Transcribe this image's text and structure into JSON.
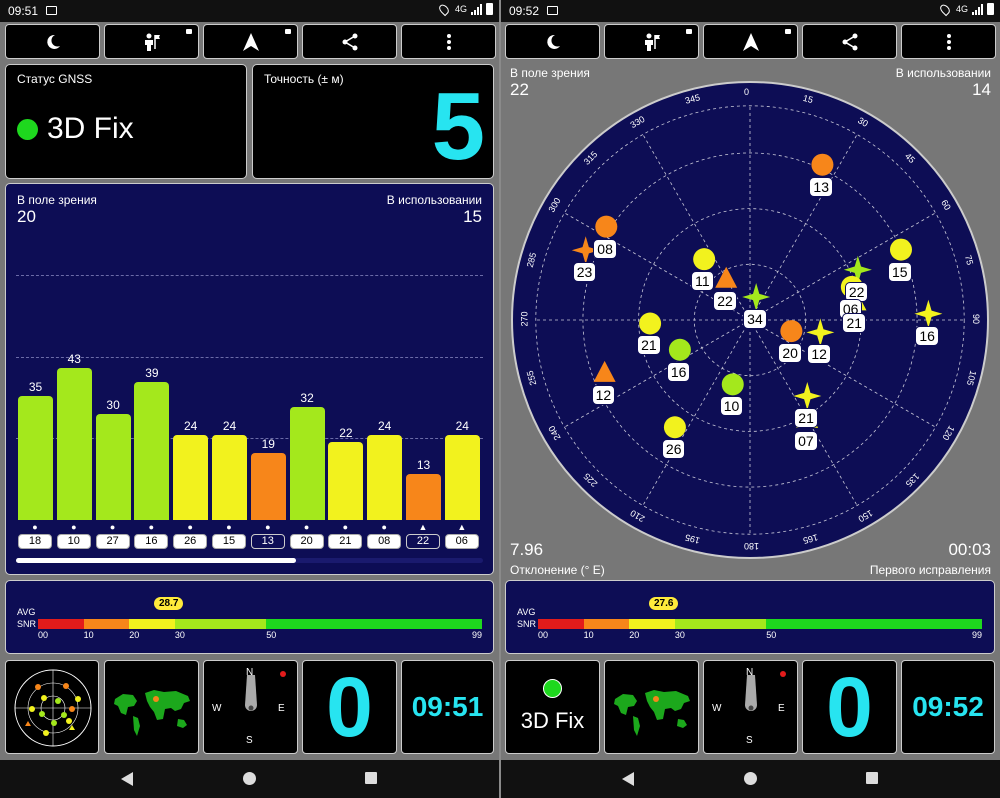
{
  "left": {
    "status_bar": {
      "time": "09:51",
      "net": "4G"
    },
    "gnss": {
      "label": "Статус GNSS",
      "value": "3D Fix"
    },
    "accuracy": {
      "label": "Точность (± м)",
      "value": "5"
    },
    "signal": {
      "in_view_label": "В поле зрения",
      "in_view": "20",
      "in_use_label": "В использовании",
      "in_use": "15"
    },
    "snr": {
      "avg_label": "AVG",
      "snr_label": "SNR",
      "avg": "28.7",
      "ticks": [
        "00",
        "10",
        "20",
        "30",
        "50",
        "99"
      ]
    },
    "bottom": {
      "clock": "09:51",
      "speed": "0",
      "compass": {
        "n": "N",
        "s": "S",
        "e": "E",
        "w": "W"
      }
    }
  },
  "right": {
    "status_bar": {
      "time": "09:52",
      "net": "4G"
    },
    "sky": {
      "in_view_label": "В поле зрения",
      "in_view": "22",
      "in_use_label": "В использовании",
      "in_use": "14",
      "decl_label": "Отклонение (° E)",
      "decl": "7.96",
      "ttff_label": "Первого исправления",
      "ttff": "00:03"
    },
    "snr": {
      "avg_label": "AVG",
      "snr_label": "SNR",
      "avg": "27.6",
      "ticks": [
        "00",
        "10",
        "20",
        "30",
        "50",
        "99"
      ]
    },
    "bottom": {
      "fix": "3D Fix",
      "clock": "09:52",
      "speed": "0",
      "compass": {
        "n": "N",
        "s": "S",
        "e": "E",
        "w": "W"
      }
    }
  },
  "colors": {
    "green": "#a4e81c",
    "yellow": "#f2f21e",
    "orange": "#f7861a",
    "cyan": "#27e4f0",
    "navy": "#0d0d55"
  },
  "icons": [
    "moon-icon",
    "person-flag-icon",
    "navigation-arrow-icon",
    "share-icon",
    "more-vert-icon"
  ],
  "chart_data": {
    "type": "bar",
    "title": "",
    "categories": [
      "18",
      "10",
      "27",
      "16",
      "26",
      "15",
      "13",
      "20",
      "21",
      "08",
      "22",
      "06"
    ],
    "values": [
      35,
      43,
      30,
      39,
      24,
      24,
      19,
      32,
      22,
      24,
      13,
      24
    ],
    "colors": [
      "green",
      "green",
      "green",
      "green",
      "yellow",
      "yellow",
      "orange",
      "green",
      "yellow",
      "yellow",
      "orange",
      "yellow"
    ],
    "markers": [
      "circle",
      "circle",
      "circle",
      "circle",
      "circle",
      "circle",
      "circle",
      "circle",
      "circle",
      "circle",
      "triangle",
      "triangle"
    ],
    "used": [
      true,
      true,
      true,
      true,
      true,
      true,
      false,
      true,
      true,
      true,
      false,
      true
    ],
    "ylim": [
      0,
      60
    ]
  },
  "sky_sats": [
    {
      "prn": "13",
      "az": 25,
      "el": 18,
      "shape": "circle",
      "color": "orange"
    },
    {
      "prn": "08",
      "az": 303,
      "el": 18,
      "shape": "circle",
      "color": "orange"
    },
    {
      "prn": "23",
      "az": 293,
      "el": 15,
      "shape": "star",
      "color": "orange"
    },
    {
      "prn": "11",
      "az": 323,
      "el": 58,
      "shape": "circle",
      "color": "yellow"
    },
    {
      "prn": "22",
      "az": 330,
      "el": 70,
      "shape": "triangle",
      "color": "orange"
    },
    {
      "prn": "15",
      "az": 65,
      "el": 20,
      "shape": "circle",
      "color": "yellow"
    },
    {
      "prn": "22",
      "az": 65,
      "el": 40,
      "shape": "star",
      "color": "green"
    },
    {
      "prn": "06",
      "az": 72,
      "el": 45,
      "shape": "circle",
      "color": "yellow"
    },
    {
      "prn": "21",
      "az": 80,
      "el": 45,
      "shape": "triangle",
      "color": "yellow"
    },
    {
      "prn": "16",
      "az": 88,
      "el": 15,
      "shape": "star",
      "color": "yellow"
    },
    {
      "prn": "34",
      "az": 15,
      "el": 80,
      "shape": "star",
      "color": "green"
    },
    {
      "prn": "12",
      "az": 100,
      "el": 60,
      "shape": "star",
      "color": "yellow"
    },
    {
      "prn": "20",
      "az": 105,
      "el": 72,
      "shape": "circle",
      "color": "orange"
    },
    {
      "prn": "21",
      "az": 268,
      "el": 48,
      "shape": "circle",
      "color": "yellow"
    },
    {
      "prn": "16",
      "az": 247,
      "el": 58,
      "shape": "circle",
      "color": "green"
    },
    {
      "prn": "12",
      "az": 250,
      "el": 25,
      "shape": "triangle",
      "color": "orange"
    },
    {
      "prn": "10",
      "az": 195,
      "el": 62,
      "shape": "circle",
      "color": "green"
    },
    {
      "prn": "21",
      "az": 143,
      "el": 50,
      "shape": "star",
      "color": "yellow"
    },
    {
      "prn": "07",
      "az": 150,
      "el": 42,
      "shape": "triangle",
      "color": "yellow"
    },
    {
      "prn": "26",
      "az": 215,
      "el": 35,
      "shape": "circle",
      "color": "yellow"
    }
  ],
  "az_labels": [
    "0",
    "15",
    "30",
    "45",
    "60",
    "75",
    "90",
    "105",
    "120",
    "135",
    "150",
    "165",
    "180",
    "195",
    "210",
    "225",
    "240",
    "255",
    "270",
    "285",
    "300",
    "315",
    "330",
    "345"
  ]
}
